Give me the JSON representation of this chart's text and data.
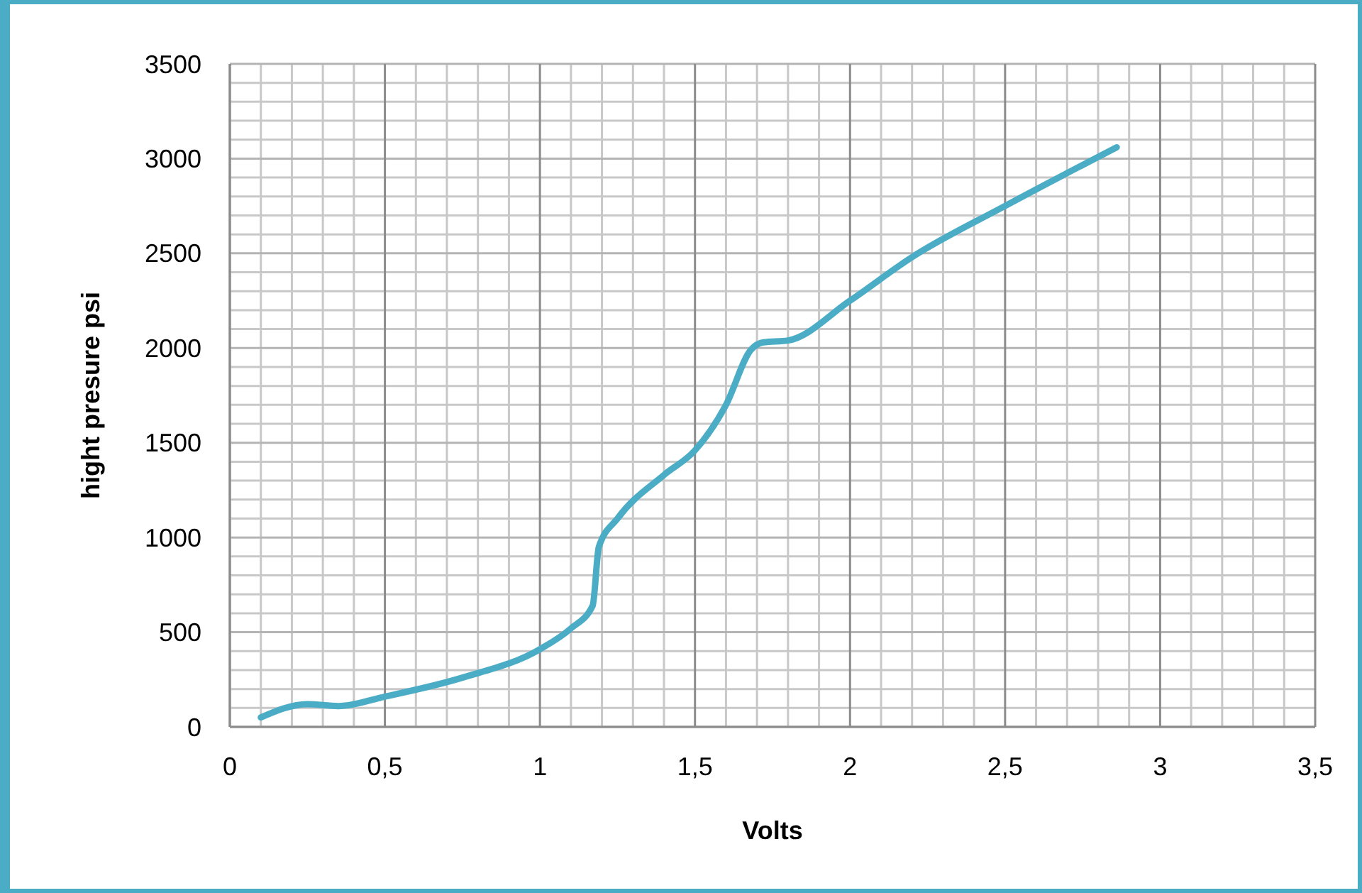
{
  "chart_data": {
    "type": "line",
    "xlabel": "Volts",
    "ylabel": "hight presure psi",
    "x": [
      0.1,
      0.25,
      0.35,
      0.5,
      0.75,
      1.0,
      1.1,
      1.17,
      1.19,
      1.25,
      1.4,
      1.5,
      1.6,
      1.68,
      1.72,
      1.8,
      2.0,
      2.2,
      2.5,
      2.86
    ],
    "series": [
      {
        "color": "#4bacc6",
        "values": [
          50,
          120,
          110,
          160,
          260,
          410,
          520,
          640,
          950,
          1100,
          1330,
          1460,
          1700,
          1990,
          2030,
          2040,
          2250,
          2480,
          2750,
          3060
        ]
      }
    ],
    "xlim": [
      0,
      3.5
    ],
    "ylim": [
      0,
      3500
    ],
    "xticks": [
      0,
      {
        "value": 0.5,
        "label": "0,5"
      },
      1,
      {
        "value": 1.5,
        "label": "1,5"
      },
      2,
      {
        "value": 2.5,
        "label": "2,5"
      },
      3,
      {
        "value": 3.5,
        "label": "3,5"
      }
    ],
    "yticks": [
      0,
      500,
      1000,
      1500,
      2000,
      2500,
      3000,
      3500
    ],
    "grid": true,
    "marker": "none",
    "line_style": "solid"
  }
}
